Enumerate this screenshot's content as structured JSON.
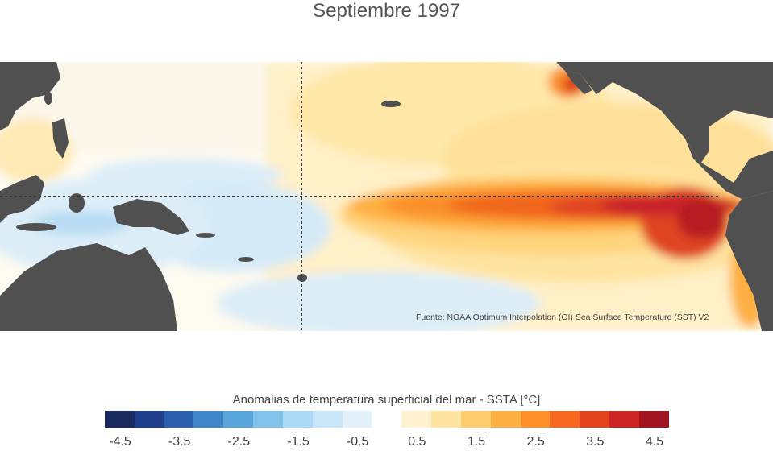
{
  "title": "Septiembre 1997",
  "source_note": "Fuente: NOAA Optimum Interpolation (OI) Sea Surface Temperature (SST) V2",
  "colorbar": {
    "label": "Anomalias de temperatura superficial del mar - SSTA  [°C]",
    "tick_labels": [
      "-4.5",
      "-3.5",
      "-2.5",
      "-1.5",
      "-0.5",
      "0.5",
      "1.5",
      "2.5",
      "3.5",
      "4.5"
    ],
    "colors": [
      "#1b2a5e",
      "#1f3e8c",
      "#2a5fae",
      "#3f86c8",
      "#5aa6dc",
      "#82c3ec",
      "#a9d9f5",
      "#c9e6f8",
      "#e2f0fa",
      "#ffffff",
      "#fff2d0",
      "#ffe3a1",
      "#ffcc6e",
      "#feb043",
      "#fd9029",
      "#f7691e",
      "#e44320",
      "#cc2323",
      "#a31421"
    ]
  },
  "map": {
    "land_color": "#505050",
    "reference_lines": [
      "equator",
      "date-line"
    ]
  }
}
